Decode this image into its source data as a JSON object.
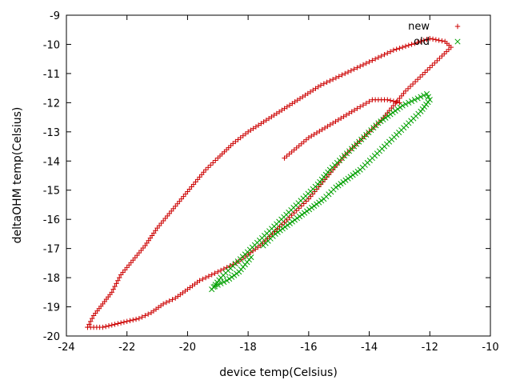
{
  "chart_data": {
    "type": "scatter",
    "title": "",
    "xlabel": "device temp(Celsius)",
    "ylabel": "deltaOHM temp(Celsius)",
    "xlim": [
      -24,
      -10
    ],
    "ylim": [
      -20,
      -9
    ],
    "xticks": [
      -24,
      -22,
      -20,
      -18,
      -16,
      -14,
      -12,
      -10
    ],
    "yticks": [
      -20,
      -19,
      -18,
      -17,
      -16,
      -15,
      -14,
      -13,
      -12,
      -11,
      -10,
      -9
    ],
    "grid": false,
    "legend": "top-right",
    "series": [
      {
        "name": "new",
        "marker": "+",
        "color": "#cc0000",
        "path": [
          [
            -23.3,
            -19.7
          ],
          [
            -23.1,
            -19.3
          ],
          [
            -22.8,
            -18.9
          ],
          [
            -22.5,
            -18.5
          ],
          [
            -22.2,
            -17.9
          ],
          [
            -21.8,
            -17.4
          ],
          [
            -21.4,
            -16.9
          ],
          [
            -21.0,
            -16.3
          ],
          [
            -20.6,
            -15.8
          ],
          [
            -20.2,
            -15.3
          ],
          [
            -19.8,
            -14.8
          ],
          [
            -19.4,
            -14.3
          ],
          [
            -19.0,
            -13.9
          ],
          [
            -18.5,
            -13.4
          ],
          [
            -18.0,
            -13.0
          ],
          [
            -17.4,
            -12.6
          ],
          [
            -16.8,
            -12.2
          ],
          [
            -16.2,
            -11.8
          ],
          [
            -15.6,
            -11.4
          ],
          [
            -15.0,
            -11.1
          ],
          [
            -14.4,
            -10.8
          ],
          [
            -13.8,
            -10.5
          ],
          [
            -13.2,
            -10.2
          ],
          [
            -12.6,
            -10.0
          ],
          [
            -12.0,
            -9.8
          ],
          [
            -11.5,
            -9.9
          ],
          [
            -11.3,
            -10.1
          ],
          [
            -11.6,
            -10.4
          ],
          [
            -12.0,
            -10.8
          ],
          [
            -12.4,
            -11.2
          ],
          [
            -12.8,
            -11.6
          ],
          [
            -13.2,
            -12.1
          ],
          [
            -13.6,
            -12.6
          ],
          [
            -14.0,
            -13.0
          ],
          [
            -14.4,
            -13.4
          ],
          [
            -14.8,
            -13.8
          ],
          [
            -15.2,
            -14.3
          ],
          [
            -15.6,
            -14.8
          ],
          [
            -16.0,
            -15.3
          ],
          [
            -16.4,
            -15.7
          ],
          [
            -16.8,
            -16.1
          ],
          [
            -17.2,
            -16.5
          ],
          [
            -17.6,
            -16.9
          ],
          [
            -18.0,
            -17.2
          ],
          [
            -18.4,
            -17.5
          ],
          [
            -18.8,
            -17.7
          ],
          [
            -19.2,
            -17.9
          ],
          [
            -19.6,
            -18.1
          ],
          [
            -20.0,
            -18.4
          ],
          [
            -20.4,
            -18.7
          ],
          [
            -20.8,
            -18.9
          ],
          [
            -21.2,
            -19.2
          ],
          [
            -21.6,
            -19.4
          ],
          [
            -22.0,
            -19.5
          ],
          [
            -22.4,
            -19.6
          ],
          [
            -22.8,
            -19.7
          ],
          [
            -23.3,
            -19.7
          ]
        ],
        "inner_path": [
          [
            -16.8,
            -13.9
          ],
          [
            -16.0,
            -13.2
          ],
          [
            -15.2,
            -12.7
          ],
          [
            -14.4,
            -12.2
          ],
          [
            -13.9,
            -11.9
          ],
          [
            -13.4,
            -11.9
          ],
          [
            -13.0,
            -12.0
          ]
        ]
      },
      {
        "name": "old",
        "marker": "x",
        "color": "#00a000",
        "path": [
          [
            -19.2,
            -18.4
          ],
          [
            -18.9,
            -18.0
          ],
          [
            -18.5,
            -17.6
          ],
          [
            -18.1,
            -17.2
          ],
          [
            -17.7,
            -16.8
          ],
          [
            -17.3,
            -16.4
          ],
          [
            -16.9,
            -16.0
          ],
          [
            -16.5,
            -15.6
          ],
          [
            -16.1,
            -15.2
          ],
          [
            -15.7,
            -14.8
          ],
          [
            -15.3,
            -14.3
          ],
          [
            -14.9,
            -13.9
          ],
          [
            -14.5,
            -13.5
          ],
          [
            -14.1,
            -13.1
          ],
          [
            -13.7,
            -12.7
          ],
          [
            -13.3,
            -12.4
          ],
          [
            -12.9,
            -12.1
          ],
          [
            -12.5,
            -11.9
          ],
          [
            -12.1,
            -11.7
          ],
          [
            -12.0,
            -11.9
          ],
          [
            -12.3,
            -12.3
          ],
          [
            -12.7,
            -12.7
          ],
          [
            -13.1,
            -13.1
          ],
          [
            -13.5,
            -13.5
          ],
          [
            -13.9,
            -13.9
          ],
          [
            -14.3,
            -14.3
          ],
          [
            -14.7,
            -14.6
          ],
          [
            -15.1,
            -14.9
          ],
          [
            -15.5,
            -15.3
          ],
          [
            -15.9,
            -15.6
          ],
          [
            -16.3,
            -15.9
          ],
          [
            -16.7,
            -16.2
          ],
          [
            -17.1,
            -16.5
          ],
          [
            -17.5,
            -16.9
          ]
        ],
        "inner_path": [
          [
            -17.9,
            -17.3
          ],
          [
            -18.3,
            -17.8
          ],
          [
            -18.7,
            -18.1
          ],
          [
            -19.1,
            -18.3
          ]
        ]
      }
    ]
  }
}
